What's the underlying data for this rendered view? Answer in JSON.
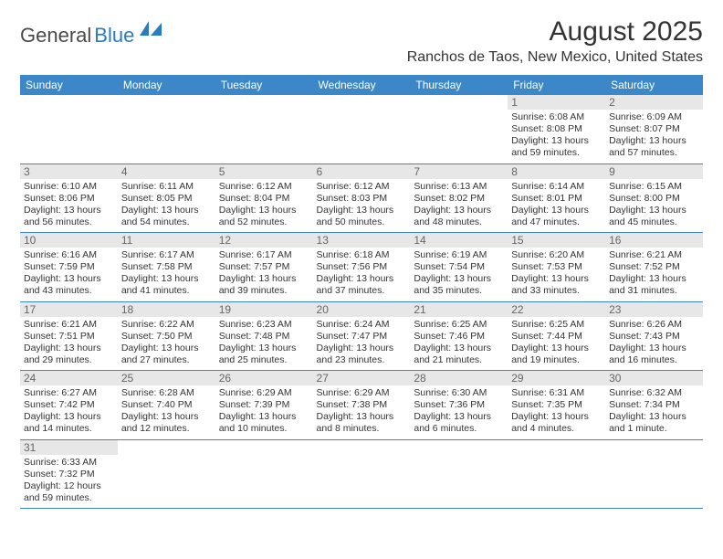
{
  "logo": {
    "general": "General",
    "blue": "Blue"
  },
  "title": "August 2025",
  "location": "Ranchos de Taos, New Mexico, United States",
  "colors": {
    "header_bg": "#3b87c8",
    "header_text": "#ffffff",
    "daynum_bg": "#e7e7e7",
    "daynum_text": "#666666",
    "body_text": "#333333",
    "rule": "#3b87c8",
    "logo_blue": "#2b7bbf",
    "logo_gray": "#4a4a4a",
    "page_bg": "#ffffff"
  },
  "typography": {
    "title_pt": 30,
    "location_pt": 16,
    "header_pt": 12,
    "daynum_pt": 12,
    "cell_pt": 10.5
  },
  "weekdays": [
    "Sunday",
    "Monday",
    "Tuesday",
    "Wednesday",
    "Thursday",
    "Friday",
    "Saturday"
  ],
  "leading_blanks": 5,
  "days": [
    {
      "n": 1,
      "sunrise": "6:08 AM",
      "sunset": "8:08 PM",
      "daylight": "13 hours and 59 minutes."
    },
    {
      "n": 2,
      "sunrise": "6:09 AM",
      "sunset": "8:07 PM",
      "daylight": "13 hours and 57 minutes."
    },
    {
      "n": 3,
      "sunrise": "6:10 AM",
      "sunset": "8:06 PM",
      "daylight": "13 hours and 56 minutes."
    },
    {
      "n": 4,
      "sunrise": "6:11 AM",
      "sunset": "8:05 PM",
      "daylight": "13 hours and 54 minutes."
    },
    {
      "n": 5,
      "sunrise": "6:12 AM",
      "sunset": "8:04 PM",
      "daylight": "13 hours and 52 minutes."
    },
    {
      "n": 6,
      "sunrise": "6:12 AM",
      "sunset": "8:03 PM",
      "daylight": "13 hours and 50 minutes."
    },
    {
      "n": 7,
      "sunrise": "6:13 AM",
      "sunset": "8:02 PM",
      "daylight": "13 hours and 48 minutes."
    },
    {
      "n": 8,
      "sunrise": "6:14 AM",
      "sunset": "8:01 PM",
      "daylight": "13 hours and 47 minutes."
    },
    {
      "n": 9,
      "sunrise": "6:15 AM",
      "sunset": "8:00 PM",
      "daylight": "13 hours and 45 minutes."
    },
    {
      "n": 10,
      "sunrise": "6:16 AM",
      "sunset": "7:59 PM",
      "daylight": "13 hours and 43 minutes."
    },
    {
      "n": 11,
      "sunrise": "6:17 AM",
      "sunset": "7:58 PM",
      "daylight": "13 hours and 41 minutes."
    },
    {
      "n": 12,
      "sunrise": "6:17 AM",
      "sunset": "7:57 PM",
      "daylight": "13 hours and 39 minutes."
    },
    {
      "n": 13,
      "sunrise": "6:18 AM",
      "sunset": "7:56 PM",
      "daylight": "13 hours and 37 minutes."
    },
    {
      "n": 14,
      "sunrise": "6:19 AM",
      "sunset": "7:54 PM",
      "daylight": "13 hours and 35 minutes."
    },
    {
      "n": 15,
      "sunrise": "6:20 AM",
      "sunset": "7:53 PM",
      "daylight": "13 hours and 33 minutes."
    },
    {
      "n": 16,
      "sunrise": "6:21 AM",
      "sunset": "7:52 PM",
      "daylight": "13 hours and 31 minutes."
    },
    {
      "n": 17,
      "sunrise": "6:21 AM",
      "sunset": "7:51 PM",
      "daylight": "13 hours and 29 minutes."
    },
    {
      "n": 18,
      "sunrise": "6:22 AM",
      "sunset": "7:50 PM",
      "daylight": "13 hours and 27 minutes."
    },
    {
      "n": 19,
      "sunrise": "6:23 AM",
      "sunset": "7:48 PM",
      "daylight": "13 hours and 25 minutes."
    },
    {
      "n": 20,
      "sunrise": "6:24 AM",
      "sunset": "7:47 PM",
      "daylight": "13 hours and 23 minutes."
    },
    {
      "n": 21,
      "sunrise": "6:25 AM",
      "sunset": "7:46 PM",
      "daylight": "13 hours and 21 minutes."
    },
    {
      "n": 22,
      "sunrise": "6:25 AM",
      "sunset": "7:44 PM",
      "daylight": "13 hours and 19 minutes."
    },
    {
      "n": 23,
      "sunrise": "6:26 AM",
      "sunset": "7:43 PM",
      "daylight": "13 hours and 16 minutes."
    },
    {
      "n": 24,
      "sunrise": "6:27 AM",
      "sunset": "7:42 PM",
      "daylight": "13 hours and 14 minutes."
    },
    {
      "n": 25,
      "sunrise": "6:28 AM",
      "sunset": "7:40 PM",
      "daylight": "13 hours and 12 minutes."
    },
    {
      "n": 26,
      "sunrise": "6:29 AM",
      "sunset": "7:39 PM",
      "daylight": "13 hours and 10 minutes."
    },
    {
      "n": 27,
      "sunrise": "6:29 AM",
      "sunset": "7:38 PM",
      "daylight": "13 hours and 8 minutes."
    },
    {
      "n": 28,
      "sunrise": "6:30 AM",
      "sunset": "7:36 PM",
      "daylight": "13 hours and 6 minutes."
    },
    {
      "n": 29,
      "sunrise": "6:31 AM",
      "sunset": "7:35 PM",
      "daylight": "13 hours and 4 minutes."
    },
    {
      "n": 30,
      "sunrise": "6:32 AM",
      "sunset": "7:34 PM",
      "daylight": "13 hours and 1 minute."
    },
    {
      "n": 31,
      "sunrise": "6:33 AM",
      "sunset": "7:32 PM",
      "daylight": "12 hours and 59 minutes."
    }
  ],
  "labels": {
    "sunrise": "Sunrise: ",
    "sunset": "Sunset: ",
    "daylight": "Daylight: "
  }
}
